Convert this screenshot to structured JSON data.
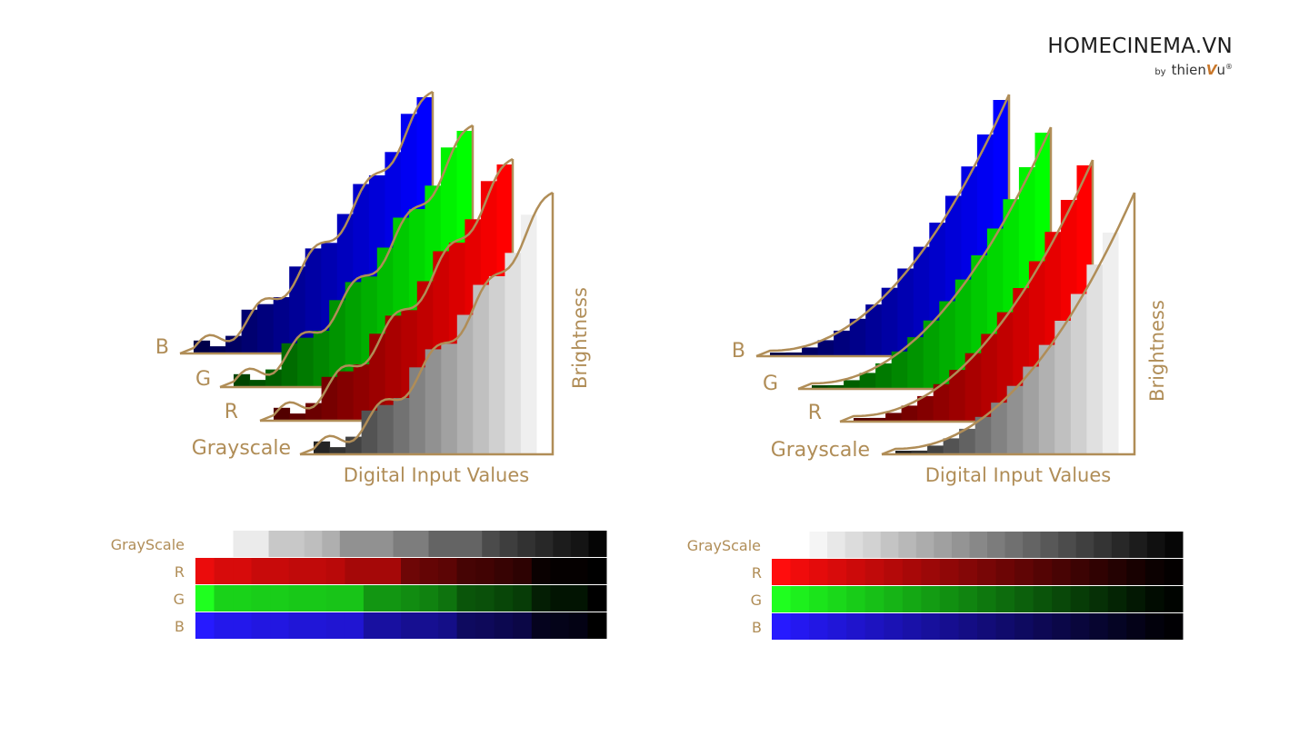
{
  "logo": {
    "title": "HOMECINEMA.VN",
    "by": "by",
    "brand_pre": "thien",
    "brand_v": "V",
    "brand_post": "u",
    "reg": "®"
  },
  "colors": {
    "gold": "#b08d57"
  },
  "diagrams": [
    {
      "id": "left",
      "layer_labels": [
        "B",
        "G",
        "R",
        "Grayscale"
      ],
      "x_axis_label": "Digital Input Values",
      "y_axis_label": "Brightness",
      "curve": "wavy",
      "swatch_rows": [
        {
          "label": "GrayScale",
          "channel": "gray",
          "values": [
            255,
            235,
            235,
            200,
            200,
            190,
            175,
            145,
            145,
            145,
            125,
            125,
            100,
            100,
            100,
            75,
            62,
            50,
            40,
            28,
            20,
            5
          ]
        },
        {
          "label": "R",
          "channel": "r",
          "values": [
            235,
            215,
            215,
            200,
            200,
            192,
            192,
            185,
            165,
            165,
            165,
            110,
            100,
            92,
            70,
            65,
            55,
            45,
            10,
            5,
            5,
            0
          ]
        },
        {
          "label": "G",
          "channel": "g",
          "values": [
            255,
            210,
            210,
            205,
            205,
            200,
            200,
            196,
            196,
            150,
            150,
            140,
            130,
            115,
            85,
            80,
            70,
            60,
            30,
            20,
            20,
            0
          ]
        },
        {
          "label": "B",
          "channel": "b",
          "values": [
            255,
            235,
            235,
            225,
            225,
            215,
            215,
            210,
            210,
            160,
            160,
            145,
            145,
            135,
            95,
            90,
            80,
            70,
            30,
            25,
            20,
            0
          ]
        }
      ]
    },
    {
      "id": "right",
      "layer_labels": [
        "B",
        "G",
        "R",
        "Grayscale"
      ],
      "x_axis_label": "Digital Input Values",
      "y_axis_label": "Brightness",
      "curve": "smooth",
      "swatch_rows": [
        {
          "label": "GrayScale",
          "channel": "gray",
          "values": [
            255,
            245,
            232,
            220,
            210,
            196,
            184,
            172,
            160,
            148,
            136,
            124,
            112,
            100,
            88,
            76,
            64,
            52,
            40,
            28,
            16,
            6
          ]
        },
        {
          "label": "R",
          "channel": "r",
          "values": [
            255,
            240,
            228,
            216,
            204,
            192,
            180,
            168,
            156,
            144,
            132,
            120,
            108,
            96,
            84,
            72,
            60,
            48,
            36,
            24,
            12,
            4
          ]
        },
        {
          "label": "G",
          "channel": "g",
          "values": [
            255,
            240,
            228,
            216,
            204,
            192,
            180,
            168,
            156,
            144,
            132,
            120,
            108,
            96,
            84,
            72,
            60,
            48,
            36,
            24,
            12,
            4
          ]
        },
        {
          "label": "B",
          "channel": "b",
          "values": [
            255,
            240,
            228,
            216,
            204,
            192,
            180,
            168,
            156,
            144,
            132,
            120,
            108,
            96,
            84,
            72,
            60,
            48,
            36,
            24,
            12,
            4
          ]
        }
      ]
    }
  ]
}
